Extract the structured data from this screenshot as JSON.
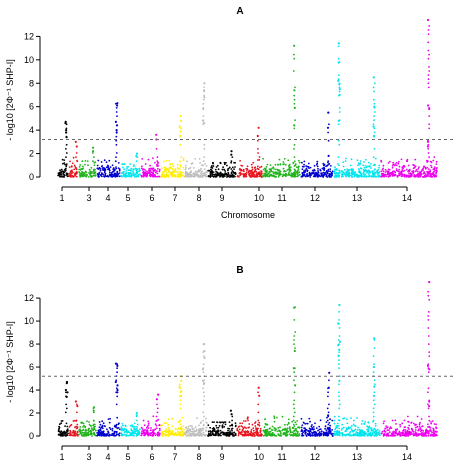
{
  "chart_data": [
    {
      "type": "scatter",
      "panel_label": "A",
      "xlabel": "Chromosome",
      "ylabel": "- log10 [2Φ⁻¹ SHP-I]",
      "ylim": [
        0,
        14
      ],
      "yticks": [
        0,
        2,
        4,
        6,
        8,
        10,
        12
      ],
      "xtick_labels": [
        "1",
        "3",
        "4",
        "5",
        "6",
        "7",
        "8",
        "9",
        "10",
        "11",
        "12",
        "13",
        "14"
      ],
      "threshold": 3.2,
      "series": [
        {
          "chromosome": "1",
          "color": "#000000",
          "max_y": 4.7,
          "peaks": [
            4.7,
            4.6,
            4.0,
            3.8,
            3.4
          ]
        },
        {
          "chromosome": "2",
          "color": "#e8141e",
          "max_y": 3.0,
          "peaks": [
            3.0,
            2.6
          ]
        },
        {
          "chromosome": "3",
          "color": "#22b41e",
          "max_y": 2.5,
          "peaks": [
            2.5,
            2.2
          ]
        },
        {
          "chromosome": "4",
          "color": "#0000cd",
          "max_y": 6.3,
          "peaks": [
            6.3,
            6.1,
            4.7,
            4.4,
            4.0,
            3.8
          ]
        },
        {
          "chromosome": "5",
          "color": "#00e5ee",
          "max_y": 2.0,
          "peaks": [
            2.0,
            1.8
          ]
        },
        {
          "chromosome": "6",
          "color": "#ee00ee",
          "max_y": 3.6,
          "peaks": [
            3.6,
            3.2
          ]
        },
        {
          "chromosome": "7",
          "color": "#ffee00",
          "max_y": 5.2,
          "peaks": [
            5.2,
            4.8,
            4.3,
            3.9,
            3.5
          ]
        },
        {
          "chromosome": "8",
          "color": "#bebebe",
          "max_y": 8.0,
          "peaks": [
            8.0,
            7.4,
            6.8,
            5.8,
            4.8,
            4.6
          ]
        },
        {
          "chromosome": "9",
          "color": "#000000",
          "max_y": 2.2,
          "peaks": [
            2.2,
            1.9
          ]
        },
        {
          "chromosome": "10",
          "color": "#e8141e",
          "max_y": 4.2,
          "peaks": [
            4.2,
            3.5
          ]
        },
        {
          "chromosome": "11",
          "color": "#22b41e",
          "max_y": 11.2,
          "peaks": [
            11.2,
            7.4,
            5.9,
            4.4
          ]
        },
        {
          "chromosome": "12",
          "color": "#0000cd",
          "max_y": 5.5,
          "peaks": [
            5.5,
            4.2,
            1.8
          ]
        },
        {
          "chromosome": "13a",
          "color": "#00e5ee",
          "max_y": 11.4,
          "peaks": [
            11.4,
            9.8,
            8.2,
            7.9,
            7.5,
            7.0,
            4.8
          ]
        },
        {
          "chromosome": "13b",
          "color": "#00e5ee",
          "max_y": 8.5,
          "peaks": [
            8.5,
            6.0,
            4.3,
            3.5
          ]
        },
        {
          "chromosome": "14",
          "color": "#ee00ee",
          "max_y": 13.4,
          "peaks": [
            13.4,
            6.1,
            5.8,
            3.0,
            2.6
          ]
        }
      ]
    },
    {
      "type": "scatter",
      "panel_label": "B",
      "xlabel": "",
      "ylabel": "- log10 [2Φ⁻¹ SHP-I]",
      "ylim": [
        0,
        14
      ],
      "yticks": [
        0,
        2,
        4,
        6,
        8,
        10,
        12
      ],
      "xtick_labels": [
        "1",
        "3",
        "4",
        "5",
        "6",
        "7",
        "8",
        "9",
        "10",
        "11",
        "12",
        "13",
        "14"
      ],
      "threshold": 5.2,
      "series": [
        {
          "chromosome": "1",
          "color": "#000000",
          "max_y": 4.7,
          "peaks": [
            4.7,
            4.6,
            4.0,
            3.8,
            3.4
          ]
        },
        {
          "chromosome": "2",
          "color": "#e8141e",
          "max_y": 3.0,
          "peaks": [
            3.0,
            2.6
          ]
        },
        {
          "chromosome": "3",
          "color": "#22b41e",
          "max_y": 2.5,
          "peaks": [
            2.5,
            2.2
          ]
        },
        {
          "chromosome": "4",
          "color": "#0000cd",
          "max_y": 6.3,
          "peaks": [
            6.3,
            6.1,
            4.7,
            4.4,
            4.0,
            3.8
          ]
        },
        {
          "chromosome": "5",
          "color": "#00e5ee",
          "max_y": 2.0,
          "peaks": [
            2.0,
            1.8
          ]
        },
        {
          "chromosome": "6",
          "color": "#ee00ee",
          "max_y": 3.6,
          "peaks": [
            3.6,
            3.2
          ]
        },
        {
          "chromosome": "7",
          "color": "#ffee00",
          "max_y": 5.2,
          "peaks": [
            5.2,
            4.8,
            4.3,
            3.9,
            3.5
          ]
        },
        {
          "chromosome": "8",
          "color": "#bebebe",
          "max_y": 8.0,
          "peaks": [
            8.0,
            7.4,
            6.8,
            5.8,
            4.8,
            4.6
          ]
        },
        {
          "chromosome": "9",
          "color": "#000000",
          "max_y": 2.2,
          "peaks": [
            2.2,
            1.9
          ]
        },
        {
          "chromosome": "10",
          "color": "#e8141e",
          "max_y": 4.2,
          "peaks": [
            4.2,
            3.5
          ]
        },
        {
          "chromosome": "11",
          "color": "#22b41e",
          "max_y": 11.2,
          "peaks": [
            11.2,
            7.4,
            5.9,
            4.4
          ]
        },
        {
          "chromosome": "12",
          "color": "#0000cd",
          "max_y": 5.5,
          "peaks": [
            5.5,
            4.2,
            1.8
          ]
        },
        {
          "chromosome": "13a",
          "color": "#00e5ee",
          "max_y": 11.4,
          "peaks": [
            11.4,
            9.8,
            8.2,
            7.9,
            7.5,
            7.0,
            4.8
          ]
        },
        {
          "chromosome": "13b",
          "color": "#00e5ee",
          "max_y": 8.5,
          "peaks": [
            8.5,
            6.0,
            4.3,
            3.5
          ]
        },
        {
          "chromosome": "14",
          "color": "#ee00ee",
          "max_y": 13.4,
          "peaks": [
            13.4,
            6.1,
            5.8,
            3.0,
            2.6
          ]
        }
      ]
    }
  ]
}
